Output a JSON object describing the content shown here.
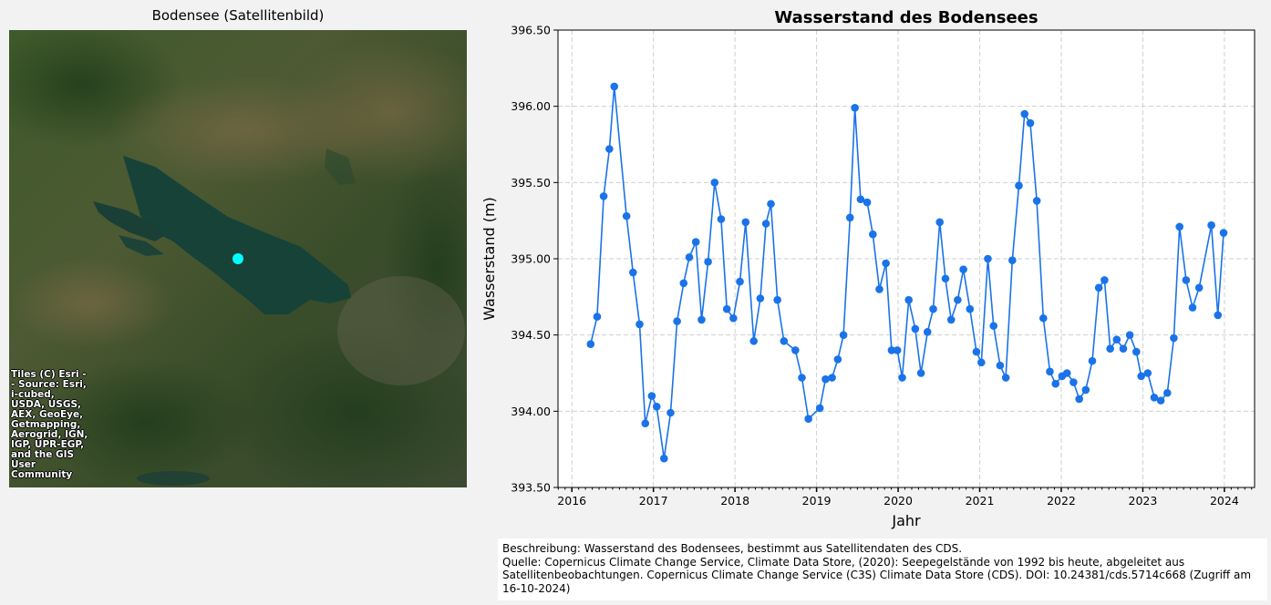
{
  "map": {
    "title": "Bodensee (Satellitenbild)",
    "attribution": "Tiles (C) Esri -- Source: Esri, i-cubed, USDA, USGS, AEX, GeoEye, Getmapping, Aerogrid, IGN, IGP, UPR-EGP, and the GIS User Community",
    "marker_color": "#00ffff"
  },
  "chart_data": {
    "type": "line",
    "title": "Wasserstand des Bodensees",
    "xlabel": "Jahr",
    "ylabel": "Wasserstand (m)",
    "ylim": [
      393.5,
      396.5
    ],
    "xlim": [
      2015.83,
      2024.37
    ],
    "grid": true,
    "color": "#1a73e8",
    "yticks": [
      "393.50",
      "394.00",
      "394.50",
      "395.00",
      "395.50",
      "396.00",
      "396.50"
    ],
    "xticks": [
      "2016",
      "2017",
      "2018",
      "2019",
      "2020",
      "2021",
      "2022",
      "2023",
      "2024"
    ],
    "series": [
      {
        "x": [
          2016.23,
          2016.31,
          2016.39,
          2016.46,
          2016.52,
          2016.67,
          2016.75,
          2016.83,
          2016.9,
          2016.98,
          2017.04,
          2017.13,
          2017.21,
          2017.29,
          2017.37,
          2017.44,
          2017.52,
          2017.59,
          2017.67,
          2017.75,
          2017.83,
          2017.9,
          2017.98,
          2018.06,
          2018.13,
          2018.23,
          2018.31,
          2018.38,
          2018.44,
          2018.52,
          2018.6,
          2018.74,
          2018.82,
          2018.9,
          2019.04,
          2019.11,
          2019.19,
          2019.26,
          2019.33,
          2019.41,
          2019.47,
          2019.54,
          2019.62,
          2019.69,
          2019.77,
          2019.85,
          2019.92,
          2019.99,
          2020.05,
          2020.13,
          2020.21,
          2020.28,
          2020.36,
          2020.43,
          2020.51,
          2020.58,
          2020.65,
          2020.73,
          2020.8,
          2020.88,
          2020.96,
          2021.02,
          2021.1,
          2021.17,
          2021.25,
          2021.32,
          2021.4,
          2021.48,
          2021.55,
          2021.62,
          2021.7,
          2021.78,
          2021.86,
          2021.93,
          2022.01,
          2022.07,
          2022.15,
          2022.22,
          2022.3,
          2022.38,
          2022.46,
          2022.53,
          2022.6,
          2022.68,
          2022.76,
          2022.84,
          2022.92,
          2022.98,
          2023.06,
          2023.14,
          2023.22,
          2023.3,
          2023.38,
          2023.45,
          2023.53,
          2023.61,
          2023.69,
          2023.84,
          2023.92,
          2023.99
        ],
        "y": [
          394.44,
          394.62,
          395.41,
          395.72,
          396.13,
          395.28,
          394.91,
          394.57,
          393.92,
          394.1,
          394.03,
          393.69,
          393.99,
          394.59,
          394.84,
          395.01,
          395.11,
          394.6,
          394.98,
          395.5,
          395.26,
          394.67,
          394.61,
          394.85,
          395.24,
          394.46,
          394.74,
          395.23,
          395.36,
          394.73,
          394.46,
          394.4,
          394.22,
          393.95,
          394.02,
          394.21,
          394.22,
          394.34,
          394.5,
          395.27,
          395.99,
          395.39,
          395.37,
          395.16,
          394.8,
          394.97,
          394.4,
          394.4,
          394.22,
          394.73,
          394.54,
          394.25,
          394.52,
          394.67,
          395.24,
          394.87,
          394.6,
          394.73,
          394.93,
          394.67,
          394.39,
          394.32,
          395.0,
          394.56,
          394.3,
          394.22,
          394.99,
          395.48,
          395.95,
          395.89,
          395.38,
          394.61,
          394.26,
          394.18,
          394.23,
          394.25,
          394.19,
          394.08,
          394.14,
          394.33,
          394.81,
          394.86,
          394.41,
          394.47,
          394.41,
          394.5,
          394.39,
          394.23,
          394.25,
          394.09,
          394.07,
          394.12,
          394.48,
          395.21,
          394.86,
          394.68,
          394.81,
          395.22,
          394.63,
          395.17
        ]
      }
    ]
  },
  "description": {
    "line1": "Beschreibung: Wasserstand des Bodensees, bestimmt aus Satellitendaten des CDS.",
    "line2": "Quelle: Copernicus Climate Change Service, Climate Data Store, (2020): Seepegelstände von 1992 bis heute, abgeleitet aus Satellitenbeobachtungen. Copernicus Climate Change Service (C3S) Climate Data Store (CDS). DOI: 10.24381/cds.5714c668 (Zugriff am 16-10-2024)"
  }
}
